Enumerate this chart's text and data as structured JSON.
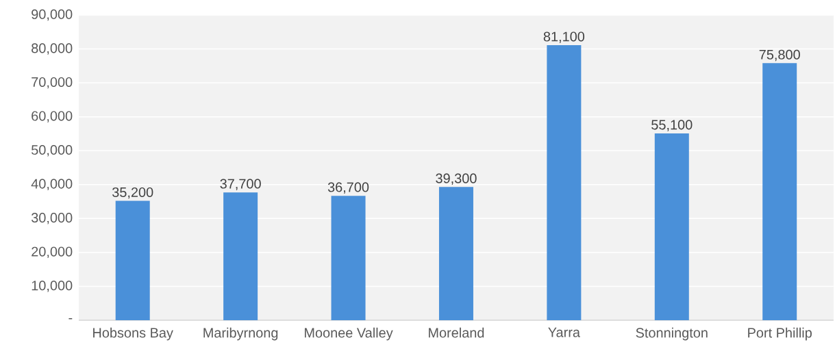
{
  "chart_data": {
    "type": "bar",
    "categories": [
      "Hobsons Bay",
      "Maribyrnong",
      "Moonee Valley",
      "Moreland",
      "Yarra",
      "Stonnington",
      "Port Phillip"
    ],
    "values": [
      35200,
      37700,
      36700,
      39300,
      81100,
      55100,
      75800
    ],
    "value_labels": [
      "35,200",
      "37,700",
      "36,700",
      "39,300",
      "81,100",
      "55,100",
      "75,800"
    ],
    "color": "#4a90d9",
    "ylim": [
      0,
      90000
    ],
    "yticks": [
      {
        "value": 0,
        "label": "-"
      },
      {
        "value": 10000,
        "label": "10,000"
      },
      {
        "value": 20000,
        "label": "20,000"
      },
      {
        "value": 30000,
        "label": "30,000"
      },
      {
        "value": 40000,
        "label": "40,000"
      },
      {
        "value": 50000,
        "label": "50,000"
      },
      {
        "value": 60000,
        "label": "60,000"
      },
      {
        "value": 70000,
        "label": "70,000"
      },
      {
        "value": 80000,
        "label": "80,000"
      },
      {
        "value": 90000,
        "label": "90,000"
      }
    ],
    "grid": "y"
  }
}
